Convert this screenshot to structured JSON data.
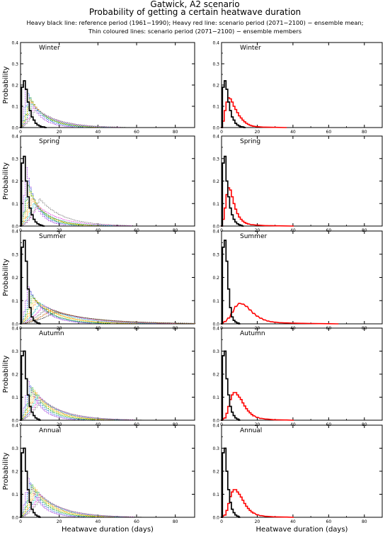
{
  "header": {
    "title_line1": "Gatwick, A2 scenario",
    "title_line2": "Probability of getting a certain heatwave duration",
    "subtitle_line1": "Heavy black line: reference period (1961−1990); Heavy red line: scenario period (2071−2100) − ensemble mean;",
    "subtitle_line2": "Thin coloured lines: scenario period (2071−2100) − ensemble members"
  },
  "chart_data": {
    "type": "line",
    "xlabel": "Heatwave duration (days)",
    "ylabel": "Probability",
    "xlim": [
      0,
      90
    ],
    "ylim": [
      0,
      0.4
    ],
    "xticks": [
      "0",
      "20",
      "40",
      "60",
      "80"
    ],
    "yticks": [
      "0.0",
      "0.1",
      "0.2",
      "0.3",
      "0.4"
    ],
    "colors": {
      "reference": "#000000",
      "scenario_mean": "#ff0000",
      "members": [
        "#9b30d9",
        "#2f6fdf",
        "#00a000",
        "#d8c800",
        "#ff8c00",
        "#00b5b5",
        "#e040e0",
        "#7a7a7a",
        "#c06000",
        "#404040"
      ]
    },
    "panels": [
      {
        "season": "Winter",
        "reference": [
          [
            0,
            0.0
          ],
          [
            1,
            0.19
          ],
          [
            2,
            0.22
          ],
          [
            3,
            0.18
          ],
          [
            4,
            0.12
          ],
          [
            5,
            0.08
          ],
          [
            6,
            0.05
          ],
          [
            7,
            0.035
          ],
          [
            8,
            0.02
          ],
          [
            9,
            0.012
          ],
          [
            10,
            0.008
          ],
          [
            11,
            0.004
          ],
          [
            12,
            0.003
          ],
          [
            13,
            0.0
          ]
        ],
        "scenario_mean": [
          [
            0,
            0.0
          ],
          [
            1,
            0.03
          ],
          [
            2,
            0.08
          ],
          [
            3,
            0.12
          ],
          [
            4,
            0.14
          ],
          [
            5,
            0.135
          ],
          [
            6,
            0.12
          ],
          [
            7,
            0.1
          ],
          [
            8,
            0.085
          ],
          [
            9,
            0.07
          ],
          [
            10,
            0.055
          ],
          [
            11,
            0.045
          ],
          [
            12,
            0.035
          ],
          [
            13,
            0.027
          ],
          [
            14,
            0.02
          ],
          [
            15,
            0.015
          ],
          [
            16,
            0.011
          ],
          [
            17,
            0.008
          ],
          [
            18,
            0.006
          ],
          [
            20,
            0.004
          ],
          [
            24,
            0.002
          ],
          [
            30,
            0.001
          ],
          [
            36,
            0.0
          ]
        ],
        "members_peak_day": [
          3,
          4,
          5,
          5,
          6,
          6,
          7,
          8
        ],
        "members_peak": [
          0.18,
          0.16,
          0.14,
          0.13,
          0.12,
          0.11,
          0.1,
          0.09
        ],
        "members_spread": [
          6,
          7,
          8,
          9,
          9,
          10,
          11,
          12
        ]
      },
      {
        "season": "Spring",
        "reference": [
          [
            0,
            0.0
          ],
          [
            1,
            0.28
          ],
          [
            2,
            0.31
          ],
          [
            3,
            0.2
          ],
          [
            4,
            0.13
          ],
          [
            5,
            0.08
          ],
          [
            6,
            0.05
          ],
          [
            7,
            0.03
          ],
          [
            8,
            0.018
          ],
          [
            9,
            0.01
          ],
          [
            10,
            0.006
          ],
          [
            11,
            0.003
          ],
          [
            12,
            0.0
          ]
        ],
        "scenario_mean": [
          [
            0,
            0.0
          ],
          [
            1,
            0.03
          ],
          [
            2,
            0.08
          ],
          [
            3,
            0.14
          ],
          [
            4,
            0.17
          ],
          [
            5,
            0.16
          ],
          [
            6,
            0.13
          ],
          [
            7,
            0.1
          ],
          [
            8,
            0.075
          ],
          [
            9,
            0.055
          ],
          [
            10,
            0.04
          ],
          [
            11,
            0.03
          ],
          [
            12,
            0.022
          ],
          [
            13,
            0.016
          ],
          [
            14,
            0.012
          ],
          [
            15,
            0.009
          ],
          [
            17,
            0.006
          ],
          [
            20,
            0.004
          ],
          [
            25,
            0.002
          ],
          [
            32,
            0.001
          ],
          [
            40,
            0.0
          ]
        ],
        "members_peak_day": [
          3,
          4,
          4,
          5,
          6,
          7,
          9,
          10
        ],
        "members_peak": [
          0.26,
          0.2,
          0.18,
          0.15,
          0.12,
          0.1,
          0.09,
          0.12
        ],
        "members_spread": [
          5,
          6,
          7,
          8,
          9,
          10,
          12,
          12
        ]
      },
      {
        "season": "Summer",
        "reference": [
          [
            0,
            0.0
          ],
          [
            1,
            0.33
          ],
          [
            2,
            0.36
          ],
          [
            3,
            0.27
          ],
          [
            4,
            0.15
          ],
          [
            5,
            0.07
          ],
          [
            6,
            0.03
          ],
          [
            7,
            0.015
          ],
          [
            8,
            0.008
          ],
          [
            9,
            0.004
          ],
          [
            10,
            0.0
          ]
        ],
        "scenario_mean": [
          [
            0,
            0.0
          ],
          [
            2,
            0.01
          ],
          [
            4,
            0.025
          ],
          [
            6,
            0.05
          ],
          [
            8,
            0.075
          ],
          [
            10,
            0.088
          ],
          [
            12,
            0.085
          ],
          [
            14,
            0.075
          ],
          [
            16,
            0.06
          ],
          [
            18,
            0.045
          ],
          [
            20,
            0.033
          ],
          [
            22,
            0.024
          ],
          [
            24,
            0.017
          ],
          [
            26,
            0.012
          ],
          [
            28,
            0.009
          ],
          [
            30,
            0.007
          ],
          [
            33,
            0.005
          ],
          [
            36,
            0.004
          ],
          [
            40,
            0.003
          ],
          [
            45,
            0.002
          ],
          [
            50,
            0.0015
          ],
          [
            55,
            0.001
          ],
          [
            60,
            0.0007
          ],
          [
            65,
            0.0
          ]
        ],
        "members_peak_day": [
          4,
          5,
          6,
          7,
          8,
          10,
          12,
          14,
          16,
          18
        ],
        "members_peak": [
          0.16,
          0.14,
          0.12,
          0.11,
          0.1,
          0.09,
          0.08,
          0.07,
          0.06,
          0.05
        ],
        "members_spread": [
          8,
          9,
          10,
          12,
          13,
          15,
          17,
          19,
          21,
          24
        ]
      },
      {
        "season": "Autumn",
        "reference": [
          [
            0,
            0.0
          ],
          [
            1,
            0.28
          ],
          [
            2,
            0.3
          ],
          [
            3,
            0.18
          ],
          [
            4,
            0.11
          ],
          [
            5,
            0.06
          ],
          [
            6,
            0.035
          ],
          [
            7,
            0.02
          ],
          [
            8,
            0.01
          ],
          [
            9,
            0.005
          ],
          [
            10,
            0.0
          ]
        ],
        "scenario_mean": [
          [
            0,
            0.0
          ],
          [
            2,
            0.01
          ],
          [
            3,
            0.03
          ],
          [
            4,
            0.06
          ],
          [
            5,
            0.09
          ],
          [
            6,
            0.11
          ],
          [
            7,
            0.12
          ],
          [
            8,
            0.12
          ],
          [
            9,
            0.11
          ],
          [
            10,
            0.1
          ],
          [
            11,
            0.09
          ],
          [
            12,
            0.075
          ],
          [
            13,
            0.062
          ],
          [
            14,
            0.05
          ],
          [
            15,
            0.04
          ],
          [
            16,
            0.032
          ],
          [
            17,
            0.025
          ],
          [
            18,
            0.019
          ],
          [
            20,
            0.012
          ],
          [
            22,
            0.008
          ],
          [
            25,
            0.005
          ],
          [
            30,
            0.002
          ],
          [
            36,
            0.001
          ],
          [
            40,
            0.0
          ]
        ],
        "members_peak_day": [
          4,
          5,
          6,
          7,
          8,
          9,
          10,
          11
        ],
        "members_peak": [
          0.17,
          0.15,
          0.14,
          0.13,
          0.12,
          0.11,
          0.1,
          0.09
        ],
        "members_spread": [
          6,
          7,
          8,
          9,
          10,
          11,
          12,
          13
        ]
      },
      {
        "season": "Annual",
        "reference": [
          [
            0,
            0.0
          ],
          [
            1,
            0.28
          ],
          [
            2,
            0.3
          ],
          [
            3,
            0.2
          ],
          [
            4,
            0.12
          ],
          [
            5,
            0.065
          ],
          [
            6,
            0.035
          ],
          [
            7,
            0.02
          ],
          [
            8,
            0.01
          ],
          [
            9,
            0.005
          ],
          [
            10,
            0.0
          ]
        ],
        "scenario_mean": [
          [
            0,
            0.0
          ],
          [
            2,
            0.01
          ],
          [
            3,
            0.03
          ],
          [
            4,
            0.06
          ],
          [
            5,
            0.09
          ],
          [
            6,
            0.11
          ],
          [
            7,
            0.12
          ],
          [
            8,
            0.12
          ],
          [
            9,
            0.11
          ],
          [
            10,
            0.1
          ],
          [
            11,
            0.088
          ],
          [
            12,
            0.074
          ],
          [
            13,
            0.06
          ],
          [
            14,
            0.048
          ],
          [
            15,
            0.038
          ],
          [
            16,
            0.03
          ],
          [
            17,
            0.023
          ],
          [
            18,
            0.018
          ],
          [
            20,
            0.011
          ],
          [
            22,
            0.007
          ],
          [
            25,
            0.004
          ],
          [
            30,
            0.002
          ],
          [
            36,
            0.001
          ],
          [
            40,
            0.0
          ]
        ],
        "members_peak_day": [
          4,
          5,
          6,
          7,
          8,
          9,
          10,
          11
        ],
        "members_peak": [
          0.17,
          0.15,
          0.14,
          0.13,
          0.12,
          0.11,
          0.1,
          0.09
        ],
        "members_spread": [
          6,
          7,
          8,
          9,
          10,
          11,
          12,
          13
        ]
      }
    ]
  }
}
